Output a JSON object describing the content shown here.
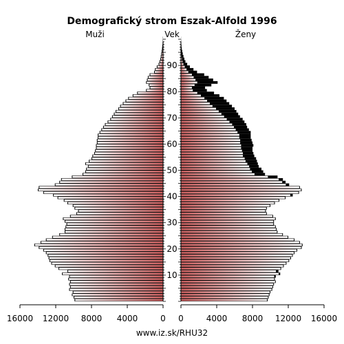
{
  "chart_data": {
    "type": "bar",
    "title": "Demografický strom Eszak-Alfold 1996",
    "left_label": "Muži",
    "center_label": "Vek",
    "right_label": "Ženy",
    "footer": "www.iz.sk/RHU32",
    "x_ticks_left": [
      "16000",
      "12000",
      "8000",
      "4000",
      "0"
    ],
    "x_ticks_right": [
      "0",
      "4000",
      "8000",
      "12000",
      "16000"
    ],
    "x_max": 16000,
    "age_range": [
      0,
      100
    ],
    "age_ticks": [
      "10",
      "20",
      "30",
      "40",
      "50",
      "60",
      "70",
      "80",
      "90"
    ],
    "colors": {
      "male_fill": "#cc5f5f",
      "female_fill": "#cc5f5f",
      "female_excess": "#000000",
      "male_excess": "#000000"
    },
    "series": [
      {
        "name": "Muži",
        "values": [
          9900,
          10000,
          10200,
          10100,
          10500,
          10400,
          10500,
          10400,
          10600,
          10500,
          11300,
          10700,
          11700,
          12100,
          12500,
          12700,
          12800,
          12900,
          13100,
          13400,
          13900,
          14400,
          13700,
          13100,
          12400,
          11600,
          11000,
          11000,
          10900,
          10800,
          11000,
          11200,
          10400,
          9700,
          9500,
          9900,
          10100,
          10700,
          11100,
          11800,
          12300,
          13400,
          14000,
          13900,
          12100,
          11600,
          11400,
          10200,
          9000,
          8700,
          8600,
          8400,
          8700,
          8300,
          8000,
          7900,
          7700,
          7600,
          7500,
          7500,
          7400,
          7400,
          7300,
          7300,
          7100,
          6900,
          6700,
          6500,
          6200,
          5900,
          5700,
          5500,
          5300,
          5000,
          4800,
          4500,
          4200,
          3900,
          3400,
          2900,
          1900,
          1500,
          1600,
          1900,
          1800,
          1700,
          1500,
          1000,
          900,
          700,
          500,
          400,
          300,
          250,
          200,
          150,
          110,
          80,
          50,
          30,
          20
        ]
      },
      {
        "name": "Ženy",
        "values": [
          9700,
          9800,
          9900,
          10000,
          10200,
          10300,
          10400,
          10600,
          10500,
          10600,
          11100,
          10900,
          11200,
          11500,
          11800,
          12100,
          12300,
          12500,
          12700,
          13000,
          13500,
          13600,
          13300,
          12700,
          12000,
          11400,
          10800,
          10700,
          10600,
          10400,
          10400,
          10600,
          10300,
          9600,
          9500,
          9600,
          10000,
          10500,
          11000,
          11700,
          12500,
          13200,
          13500,
          13300,
          12100,
          11700,
          11400,
          10800,
          9400,
          9200,
          9000,
          8700,
          8600,
          8500,
          8400,
          8200,
          8100,
          8000,
          8000,
          8100,
          8000,
          7900,
          7800,
          7800,
          7800,
          7600,
          7400,
          7300,
          7100,
          6900,
          6600,
          6400,
          6200,
          6000,
          5700,
          5400,
          5100,
          4800,
          4300,
          3700,
          2900,
          2700,
          3400,
          4100,
          3600,
          3100,
          2600,
          1800,
          1400,
          1000,
          700,
          500,
          380,
          280,
          200,
          140,
          90,
          60,
          40,
          20,
          10
        ]
      },
      {
        "name": "",
        "values": [
          9700,
          9800,
          9900,
          10000,
          10200,
          10300,
          10400,
          10600,
          10500,
          10500,
          11000,
          10700,
          11200,
          11500,
          11800,
          12100,
          12300,
          12500,
          12700,
          13000,
          13500,
          13600,
          13300,
          12700,
          12000,
          11400,
          10800,
          10700,
          10600,
          10400,
          10400,
          10600,
          10300,
          9600,
          9500,
          9600,
          10000,
          10500,
          11000,
          11700,
          12300,
          13200,
          13500,
          13300,
          11800,
          11400,
          11000,
          9800,
          8300,
          8000,
          7800,
          7700,
          7500,
          7300,
          7200,
          7000,
          7000,
          6900,
          6800,
          6800,
          6700,
          6700,
          6600,
          6600,
          6400,
          6200,
          6000,
          5800,
          5500,
          5200,
          4900,
          4600,
          4300,
          4000,
          3600,
          3300,
          3000,
          2700,
          2300,
          1900,
          1400,
          1300,
          1600,
          1900,
          1700,
          1500,
          1300,
          900,
          700,
          500,
          350,
          250,
          180,
          130,
          90,
          60,
          40,
          25,
          15,
          8,
          4
        ]
      }
    ]
  }
}
